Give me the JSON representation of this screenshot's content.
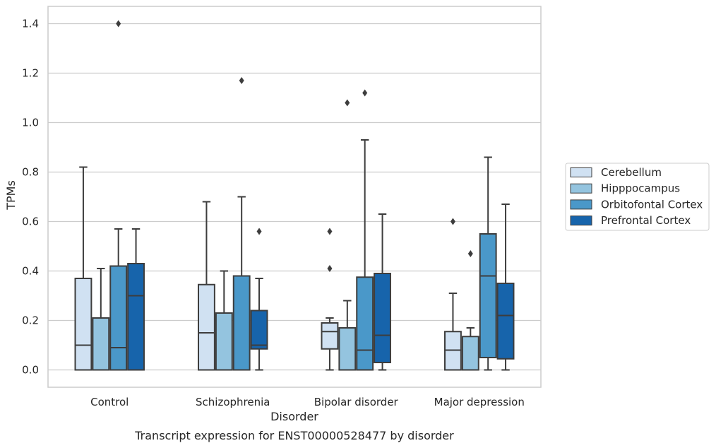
{
  "caption": "Transcript expression for ENST00000528477 by disorder",
  "chart_data": {
    "type": "box",
    "xlabel": "Disorder",
    "ylabel": "TPMs",
    "ylim": [
      -0.07,
      1.47
    ],
    "yticks": [
      "0.0",
      "0.2",
      "0.4",
      "0.6",
      "0.8",
      "1.0",
      "1.2",
      "1.4"
    ],
    "ytick_values": [
      0.0,
      0.2,
      0.4,
      0.6,
      0.8,
      1.0,
      1.2,
      1.4
    ],
    "grid": "horizontal",
    "legend_position": "right",
    "categories": [
      "Control",
      "Schizophrenia",
      "Bipolar disorder",
      "Major depression"
    ],
    "series": [
      {
        "name": "Cerebellum",
        "color": "#d0e1f2",
        "boxes": [
          {
            "whislo": 0.0,
            "q1": 0.0,
            "med": 0.1,
            "q3": 0.37,
            "whishi": 0.82,
            "fliers": []
          },
          {
            "whislo": 0.0,
            "q1": 0.0,
            "med": 0.15,
            "q3": 0.345,
            "whishi": 0.68,
            "fliers": []
          },
          {
            "whislo": 0.0,
            "q1": 0.085,
            "med": 0.155,
            "q3": 0.19,
            "whishi": 0.21,
            "fliers": [
              0.41,
              0.56
            ]
          },
          {
            "whislo": 0.0,
            "q1": 0.0,
            "med": 0.08,
            "q3": 0.155,
            "whishi": 0.31,
            "fliers": [
              0.6
            ]
          }
        ]
      },
      {
        "name": "Hipppocampus",
        "color": "#94c4df",
        "boxes": [
          {
            "whislo": 0.0,
            "q1": 0.0,
            "med": 0.0,
            "q3": 0.21,
            "whishi": 0.41,
            "fliers": []
          },
          {
            "whislo": 0.0,
            "q1": 0.0,
            "med": 0.0,
            "q3": 0.23,
            "whishi": 0.4,
            "fliers": []
          },
          {
            "whislo": 0.0,
            "q1": 0.0,
            "med": 0.0,
            "q3": 0.17,
            "whishi": 0.28,
            "fliers": [
              1.08
            ]
          },
          {
            "whislo": 0.0,
            "q1": 0.0,
            "med": 0.0,
            "q3": 0.135,
            "whishi": 0.17,
            "fliers": [
              0.47
            ]
          }
        ]
      },
      {
        "name": "Orbitofontal Cortex",
        "color": "#4a98c9",
        "boxes": [
          {
            "whislo": 0.0,
            "q1": 0.0,
            "med": 0.09,
            "q3": 0.42,
            "whishi": 0.57,
            "fliers": [
              1.4
            ]
          },
          {
            "whislo": 0.0,
            "q1": 0.0,
            "med": 0.0,
            "q3": 0.38,
            "whishi": 0.7,
            "fliers": [
              1.17
            ]
          },
          {
            "whislo": 0.0,
            "q1": 0.0,
            "med": 0.08,
            "q3": 0.375,
            "whishi": 0.93,
            "fliers": [
              1.12
            ]
          },
          {
            "whislo": 0.0,
            "q1": 0.05,
            "med": 0.38,
            "q3": 0.55,
            "whishi": 0.86,
            "fliers": []
          }
        ]
      },
      {
        "name": "Prefrontal Cortex",
        "color": "#1764ab",
        "boxes": [
          {
            "whislo": 0.0,
            "q1": 0.0,
            "med": 0.3,
            "q3": 0.43,
            "whishi": 0.57,
            "fliers": []
          },
          {
            "whislo": 0.0,
            "q1": 0.085,
            "med": 0.1,
            "q3": 0.24,
            "whishi": 0.37,
            "fliers": [
              0.56
            ]
          },
          {
            "whislo": 0.0,
            "q1": 0.03,
            "med": 0.14,
            "q3": 0.39,
            "whishi": 0.63,
            "fliers": []
          },
          {
            "whislo": 0.0,
            "q1": 0.045,
            "med": 0.22,
            "q3": 0.35,
            "whishi": 0.67,
            "fliers": []
          }
        ]
      }
    ]
  }
}
